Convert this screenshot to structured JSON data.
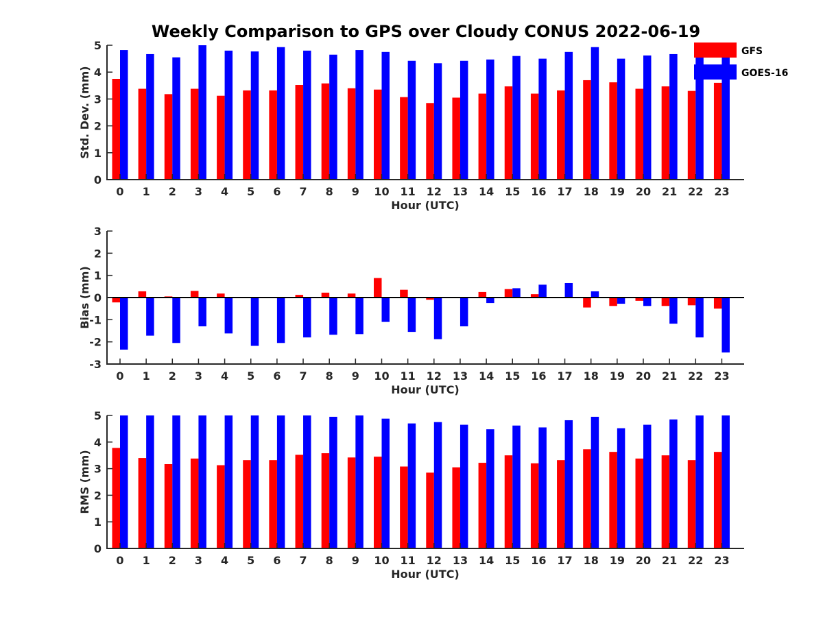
{
  "figure_title": "Weekly Comparison to GPS over Cloudy CONUS 2022-06-19",
  "legend": [
    {
      "label": "GFS",
      "color": "#ff0000"
    },
    {
      "label": "GOES-16",
      "color": "#0000ff"
    }
  ],
  "chart_data": [
    {
      "type": "bar",
      "categories": [
        "0",
        "1",
        "2",
        "3",
        "4",
        "5",
        "6",
        "7",
        "8",
        "9",
        "10",
        "11",
        "12",
        "13",
        "14",
        "15",
        "16",
        "17",
        "18",
        "19",
        "20",
        "21",
        "22",
        "23"
      ],
      "xlabel": "Hour (UTC)",
      "ylabel": "Std. Dev. (mm)",
      "ylim": [
        0,
        5
      ],
      "yticks": [
        "0",
        "1",
        "2",
        "3",
        "4",
        "5"
      ],
      "series": [
        {
          "name": "GFS",
          "color": "#ff0000",
          "values": [
            3.75,
            3.38,
            3.18,
            3.38,
            3.12,
            3.32,
            3.32,
            3.52,
            3.58,
            3.4,
            3.35,
            3.07,
            2.85,
            3.05,
            3.2,
            3.47,
            3.2,
            3.32,
            3.7,
            3.62,
            3.38,
            3.47,
            3.3,
            3.6
          ]
        },
        {
          "name": "GOES-16",
          "color": "#0000ff",
          "values": [
            4.82,
            4.67,
            4.55,
            5.0,
            4.8,
            4.77,
            4.93,
            4.8,
            4.65,
            4.82,
            4.75,
            4.42,
            4.33,
            4.42,
            4.47,
            4.6,
            4.5,
            4.75,
            4.93,
            4.5,
            4.62,
            4.67,
            4.65,
            4.8
          ]
        }
      ]
    },
    {
      "type": "bar",
      "categories": [
        "0",
        "1",
        "2",
        "3",
        "4",
        "5",
        "6",
        "7",
        "8",
        "9",
        "10",
        "11",
        "12",
        "13",
        "14",
        "15",
        "16",
        "17",
        "18",
        "19",
        "20",
        "21",
        "22",
        "23"
      ],
      "xlabel": "Hour (UTC)",
      "ylabel": "Bias (mm)",
      "ylim": [
        -3,
        3
      ],
      "yticks": [
        "-3",
        "-2",
        "-1",
        "0",
        "1",
        "2",
        "3"
      ],
      "series": [
        {
          "name": "GFS",
          "color": "#ff0000",
          "values": [
            -0.22,
            0.28,
            0.05,
            0.3,
            0.18,
            0.0,
            0.0,
            0.12,
            0.22,
            0.18,
            0.88,
            0.35,
            -0.1,
            0.03,
            0.25,
            0.38,
            0.15,
            -0.03,
            -0.45,
            -0.38,
            -0.15,
            -0.38,
            -0.35,
            -0.5
          ]
        },
        {
          "name": "GOES-16",
          "color": "#0000ff",
          "values": [
            -2.35,
            -1.72,
            -2.05,
            -1.3,
            -1.62,
            -2.18,
            -2.05,
            -1.8,
            -1.68,
            -1.65,
            -1.1,
            -1.55,
            -1.88,
            -1.3,
            -0.25,
            0.42,
            0.58,
            0.65,
            0.28,
            -0.28,
            -0.38,
            -1.18,
            -1.8,
            -2.48
          ]
        }
      ]
    },
    {
      "type": "bar",
      "categories": [
        "0",
        "1",
        "2",
        "3",
        "4",
        "5",
        "6",
        "7",
        "8",
        "9",
        "10",
        "11",
        "12",
        "13",
        "14",
        "15",
        "16",
        "17",
        "18",
        "19",
        "20",
        "21",
        "22",
        "23"
      ],
      "xlabel": "Hour (UTC)",
      "ylabel": "RMS (mm)",
      "ylim": [
        0,
        5
      ],
      "yticks": [
        "0",
        "1",
        "2",
        "3",
        "4",
        "5"
      ],
      "series": [
        {
          "name": "GFS",
          "color": "#ff0000",
          "values": [
            3.78,
            3.4,
            3.17,
            3.38,
            3.13,
            3.32,
            3.32,
            3.52,
            3.58,
            3.42,
            3.45,
            3.08,
            2.85,
            3.05,
            3.22,
            3.5,
            3.2,
            3.32,
            3.73,
            3.63,
            3.38,
            3.5,
            3.32,
            3.63
          ]
        },
        {
          "name": "GOES-16",
          "color": "#0000ff",
          "values": [
            5.0,
            5.0,
            5.0,
            5.0,
            5.0,
            5.0,
            5.0,
            5.0,
            4.95,
            5.0,
            4.88,
            4.7,
            4.75,
            4.65,
            4.48,
            4.62,
            4.55,
            4.82,
            4.95,
            4.52,
            4.65,
            4.85,
            5.0,
            5.0
          ]
        }
      ]
    }
  ]
}
